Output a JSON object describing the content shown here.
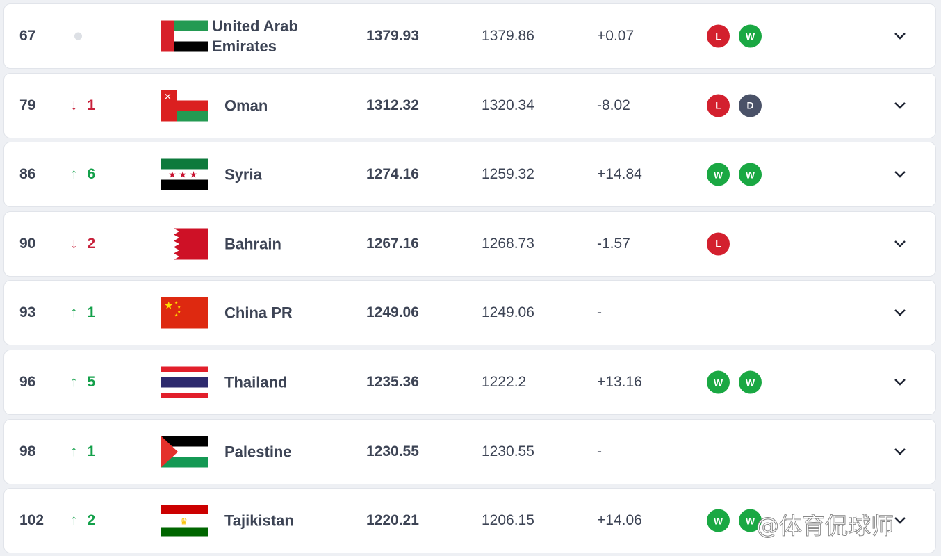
{
  "rows": [
    {
      "rank": "67",
      "movement": "same",
      "change": "",
      "country": "United Arab Emirates",
      "flag": "uae",
      "total": "1379.93",
      "previous": "1379.86",
      "diff": "+0.07",
      "form": [
        "L",
        "W"
      ]
    },
    {
      "rank": "79",
      "movement": "down",
      "change": "1",
      "country": "Oman",
      "flag": "oman",
      "total": "1312.32",
      "previous": "1320.34",
      "diff": "-8.02",
      "form": [
        "L",
        "D"
      ]
    },
    {
      "rank": "86",
      "movement": "up",
      "change": "6",
      "country": "Syria",
      "flag": "syria",
      "total": "1274.16",
      "previous": "1259.32",
      "diff": "+14.84",
      "form": [
        "W",
        "W"
      ]
    },
    {
      "rank": "90",
      "movement": "down",
      "change": "2",
      "country": "Bahrain",
      "flag": "bahrain",
      "total": "1267.16",
      "previous": "1268.73",
      "diff": "-1.57",
      "form": [
        "L"
      ]
    },
    {
      "rank": "93",
      "movement": "up",
      "change": "1",
      "country": "China PR",
      "flag": "china",
      "total": "1249.06",
      "previous": "1249.06",
      "diff": "-",
      "form": []
    },
    {
      "rank": "96",
      "movement": "up",
      "change": "5",
      "country": "Thailand",
      "flag": "thailand",
      "total": "1235.36",
      "previous": "1222.2",
      "diff": "+13.16",
      "form": [
        "W",
        "W"
      ]
    },
    {
      "rank": "98",
      "movement": "up",
      "change": "1",
      "country": "Palestine",
      "flag": "palestine",
      "total": "1230.55",
      "previous": "1230.55",
      "diff": "-",
      "form": []
    },
    {
      "rank": "102",
      "movement": "up",
      "change": "2",
      "country": "Tajikistan",
      "flag": "tajikistan",
      "total": "1220.21",
      "previous": "1206.15",
      "diff": "+14.06",
      "form": [
        "W",
        "W"
      ]
    }
  ],
  "watermark": "@体育侃球师",
  "colors": {
    "up": "#13a04a",
    "down": "#c8213b",
    "win": "#1aa843",
    "loss": "#d3202e",
    "draw": "#4a5268"
  }
}
